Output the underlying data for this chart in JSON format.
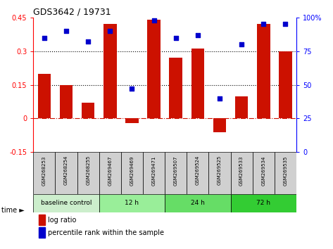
{
  "title": "GDS3642 / 19731",
  "samples": [
    "GSM268253",
    "GSM268254",
    "GSM268255",
    "GSM269467",
    "GSM269469",
    "GSM269471",
    "GSM269507",
    "GSM269524",
    "GSM269525",
    "GSM269533",
    "GSM269534",
    "GSM269535"
  ],
  "log_ratio": [
    0.2,
    0.15,
    0.07,
    0.42,
    -0.02,
    0.44,
    0.27,
    0.31,
    -0.06,
    0.1,
    0.42,
    0.3
  ],
  "percentile_rank": [
    85,
    90,
    82,
    90,
    47,
    98,
    85,
    87,
    40,
    80,
    95,
    95
  ],
  "groups": [
    {
      "label": "baseline control",
      "count": 3,
      "color": "#cceecc"
    },
    {
      "label": "12 h",
      "count": 3,
      "color": "#99ee99"
    },
    {
      "label": "24 h",
      "count": 3,
      "color": "#66dd66"
    },
    {
      "label": "72 h",
      "count": 3,
      "color": "#33cc33"
    }
  ],
  "bar_color": "#cc1100",
  "dot_color": "#0000cc",
  "ylim_left": [
    -0.15,
    0.45
  ],
  "ylim_right": [
    0,
    100
  ],
  "yticks_left": [
    -0.15,
    0,
    0.15,
    0.3,
    0.45
  ],
  "yticks_right": [
    0,
    25,
    50,
    75,
    100
  ],
  "hlines": [
    0.15,
    0.3
  ],
  "bar_width": 0.6,
  "sample_box_color": "#d0d0d0",
  "time_arrow": "time ►"
}
